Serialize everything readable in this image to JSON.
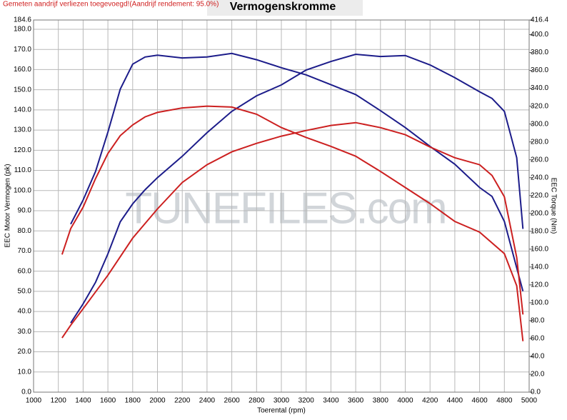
{
  "chart_data": {
    "type": "line",
    "title": "Vermogenskromme",
    "subtitle": "Gemeten aandrijf verliezen toegevoegd!(Aandrijf rendement: 95.0%)",
    "watermark": "TUNEFILES.com",
    "xlabel": "Toerental (rpm)",
    "ylabel": "EEC Motor Vermogen (pk)",
    "y2label": "EEC Torque (Nm)",
    "grid": true,
    "xlim": [
      1000,
      5000
    ],
    "xticks": [
      1000,
      1200,
      1400,
      1600,
      1800,
      2000,
      2200,
      2400,
      2600,
      2800,
      3000,
      3200,
      3400,
      3600,
      3800,
      4000,
      4200,
      4400,
      4600,
      4800,
      5000
    ],
    "ylim": [
      0,
      184.6
    ],
    "yticks": [
      {
        "value": 0,
        "label": "0.0"
      },
      {
        "value": 10,
        "label": "10.0"
      },
      {
        "value": 20,
        "label": "20.0"
      },
      {
        "value": 30,
        "label": "30.0"
      },
      {
        "value": 40,
        "label": "40.0"
      },
      {
        "value": 50,
        "label": "50.0"
      },
      {
        "value": 60,
        "label": "60.0"
      },
      {
        "value": 70,
        "label": "70.0"
      },
      {
        "value": 80,
        "label": "80.0"
      },
      {
        "value": 90,
        "label": "90.0"
      },
      {
        "value": 100,
        "label": "100.0"
      },
      {
        "value": 110,
        "label": "110.0"
      },
      {
        "value": 120,
        "label": "120.0"
      },
      {
        "value": 130,
        "label": "130.0"
      },
      {
        "value": 140,
        "label": "140.0"
      },
      {
        "value": 150,
        "label": "150.0"
      },
      {
        "value": 160,
        "label": "160.0"
      },
      {
        "value": 170,
        "label": "170.0"
      },
      {
        "value": 180,
        "label": "180.0"
      },
      184.6
    ],
    "y2lim": [
      0,
      416.4
    ],
    "y2ticks": [
      {
        "value": 0,
        "label": "0.0"
      },
      {
        "value": 20,
        "label": "20.0"
      },
      {
        "value": 40,
        "label": "40.0"
      },
      {
        "value": 60,
        "label": "60.0"
      },
      {
        "value": 80,
        "label": "80.0"
      },
      {
        "value": 100,
        "label": "100.0"
      },
      {
        "value": 120,
        "label": "120.0"
      },
      {
        "value": 140,
        "label": "140.0"
      },
      {
        "value": 160,
        "label": "160.0"
      },
      {
        "value": 180,
        "label": "180.0"
      },
      {
        "value": 200,
        "label": "200.0"
      },
      {
        "value": 220,
        "label": "220.0"
      },
      {
        "value": 240,
        "label": "240.0"
      },
      {
        "value": 260,
        "label": "260.0"
      },
      {
        "value": 280,
        "label": "280.0"
      },
      {
        "value": 300,
        "label": "300.0"
      },
      {
        "value": 320,
        "label": "320.0"
      },
      {
        "value": 340,
        "label": "340.0"
      },
      {
        "value": 360,
        "label": "360.0"
      },
      {
        "value": 380,
        "label": "380.0"
      },
      {
        "value": 400,
        "label": "400.0"
      },
      416.4
    ],
    "series": [
      {
        "color": "#1c1c8a",
        "axis": "y2",
        "x": [
          1300,
          1400,
          1500,
          1600,
          1700,
          1800,
          1900,
          2000,
          2200,
          2400,
          2600,
          2800,
          3000,
          3200,
          3400,
          3600,
          3800,
          4000,
          4200,
          4400,
          4600,
          4700,
          4800,
          4900,
          4950
        ],
        "values": [
          188,
          215,
          247,
          291,
          339,
          367,
          375,
          377,
          374,
          375,
          379,
          372,
          363,
          355,
          344,
          333,
          315,
          296,
          275,
          255,
          229,
          219,
          191,
          139,
          113
        ]
      },
      {
        "color": "#1c1c8a",
        "x": [
          1300,
          1400,
          1500,
          1600,
          1700,
          1800,
          1900,
          2000,
          2200,
          2400,
          2600,
          2800,
          3000,
          3200,
          3400,
          3600,
          3800,
          4000,
          4200,
          4400,
          4600,
          4700,
          4800,
          4900,
          4950
        ],
        "values": [
          34.3,
          43.8,
          54.5,
          68.6,
          84.5,
          93.4,
          100.4,
          106.4,
          117,
          128.7,
          139.3,
          147,
          152.4,
          159.8,
          164,
          167.6,
          166.5,
          167,
          162.3,
          156,
          149,
          145.7,
          139.3,
          116.3,
          81
        ]
      },
      {
        "color": "#cc2020",
        "axis": "y2",
        "x": [
          1230,
          1300,
          1400,
          1500,
          1600,
          1700,
          1800,
          1900,
          2000,
          2200,
          2400,
          2600,
          2800,
          3000,
          3200,
          3400,
          3600,
          3800,
          4000,
          4200,
          4400,
          4600,
          4800,
          4900,
          4950
        ],
        "values": [
          154,
          183,
          207,
          239,
          267,
          287,
          299,
          308,
          313,
          318,
          320,
          319,
          311,
          296,
          285,
          275,
          264,
          247,
          229,
          211,
          191,
          179,
          155,
          119,
          57
        ]
      },
      {
        "color": "#cc2020",
        "x": [
          1230,
          1300,
          1400,
          1600,
          1800,
          2000,
          2200,
          2400,
          2600,
          2800,
          3000,
          3200,
          3400,
          3600,
          3800,
          4000,
          4200,
          4400,
          4600,
          4700,
          4800,
          4900,
          4950
        ],
        "values": [
          26.9,
          33.2,
          41.4,
          58,
          76.4,
          90.9,
          104,
          112.8,
          119.2,
          123.4,
          127,
          129.8,
          132.3,
          133.7,
          131.2,
          127.7,
          121.6,
          116.3,
          112.8,
          107.5,
          96.9,
          66.8,
          38.5
        ]
      }
    ]
  }
}
